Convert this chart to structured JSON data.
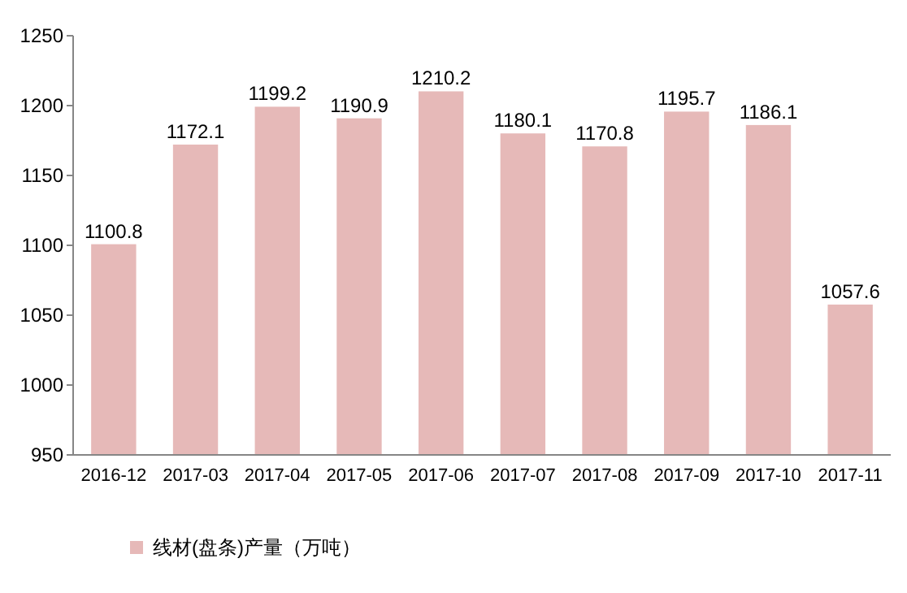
{
  "chart_data": {
    "type": "bar",
    "categories": [
      "2016-12",
      "2017-03",
      "2017-04",
      "2017-05",
      "2017-06",
      "2017-07",
      "2017-08",
      "2017-09",
      "2017-10",
      "2017-11"
    ],
    "series": [
      {
        "name": "线材(盘条)产量（万吨）",
        "color": "#e6b9b8",
        "values": [
          1100.8,
          1172.1,
          1199.2,
          1190.9,
          1210.2,
          1180.1,
          1170.8,
          1195.7,
          1186.1,
          1057.6
        ]
      }
    ],
    "ylim": [
      950,
      1250
    ],
    "yticks": [
      950,
      1000,
      1050,
      1100,
      1150,
      1200,
      1250
    ],
    "data_labels": true,
    "legend": "bottom",
    "grid": false
  }
}
